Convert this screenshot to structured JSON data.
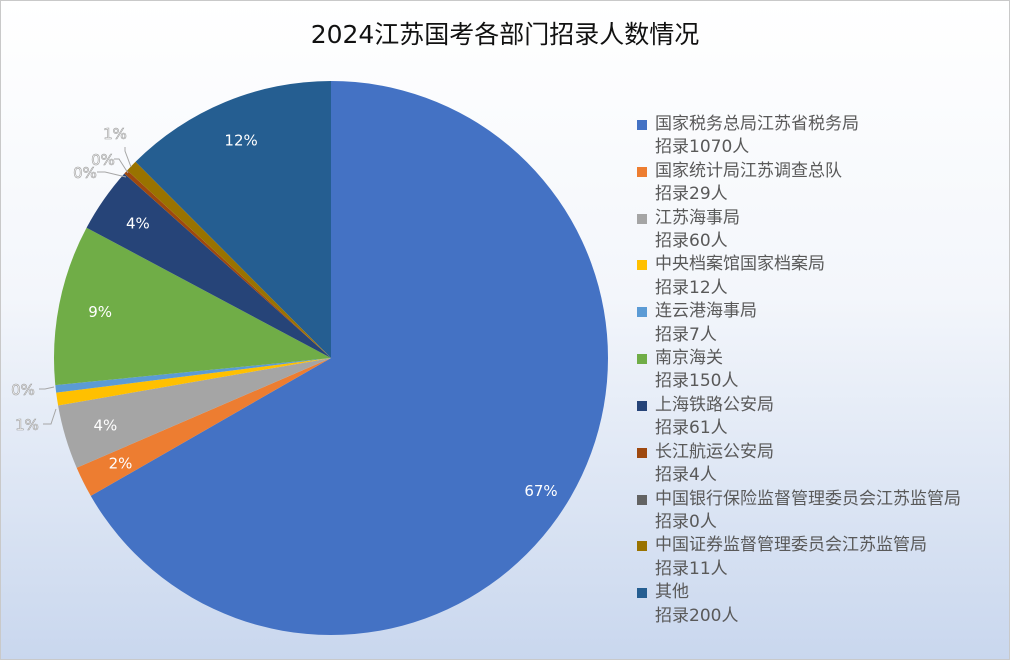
{
  "chart_data": {
    "type": "pie",
    "title": "2024江苏国考各部门招录人数情况",
    "slices": [
      {
        "name": "国家税务总局江苏省税务局",
        "sub": "招录1070人",
        "value": 1070,
        "label": "67%",
        "color": "#4472C4"
      },
      {
        "name": "国家统计局江苏调查总队",
        "sub": "招录29人",
        "value": 29,
        "label": "2%",
        "color": "#ED7D31"
      },
      {
        "name": "江苏海事局",
        "sub": "招录60人",
        "value": 60,
        "label": "4%",
        "color": "#A5A5A5"
      },
      {
        "name": "中央档案馆国家档案局",
        "sub": "招录12人",
        "value": 12,
        "label": "1%",
        "color": "#FFC000"
      },
      {
        "name": "连云港海事局",
        "sub": "招录7人",
        "value": 7,
        "label": "0%",
        "color": "#5B9BD5"
      },
      {
        "name": "南京海关",
        "sub": "招录150人",
        "value": 150,
        "label": "9%",
        "color": "#70AD47"
      },
      {
        "name": "上海铁路公安局",
        "sub": "招录61人",
        "value": 61,
        "label": "4%",
        "color": "#264478"
      },
      {
        "name": "长江航运公安局",
        "sub": "招录4人",
        "value": 4,
        "label": "0%",
        "color": "#9E480E"
      },
      {
        "name": "中国银行保险监督管理委员会江苏监管局",
        "sub": "招录0人",
        "value": 0,
        "label": "0%",
        "color": "#636363"
      },
      {
        "name": "中国证券监督管理委员会江苏监管局",
        "sub": "招录11人",
        "value": 11,
        "label": "1%",
        "color": "#997300"
      },
      {
        "name": "其他",
        "sub": "招录200人",
        "value": 200,
        "label": "12%",
        "color": "#255E91"
      }
    ],
    "start": "12 o'clock",
    "direction": "clockwise",
    "legend_position": "right",
    "label_color": "#ffffff",
    "outside_label_color": "#ffffff"
  }
}
